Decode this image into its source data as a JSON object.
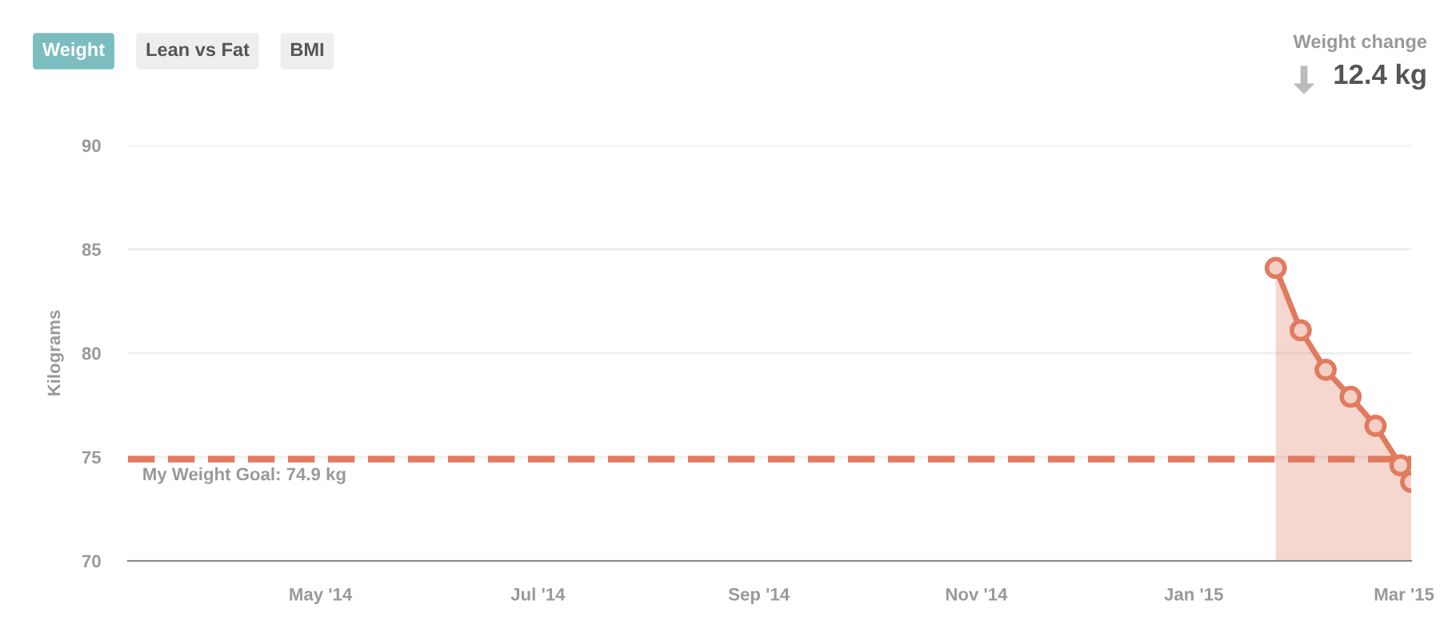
{
  "chart_data": {
    "type": "area",
    "ylabel": "Kilograms",
    "annotations": [
      "Weight",
      "Lean vs Fat",
      "BMI",
      "Weight change",
      "12.4 kg"
    ],
    "series": [
      {
        "color": "#e07b5f",
        "x": [
          "2015-01-24",
          "2015-01-31",
          "2015-02-07",
          "2015-02-14",
          "2015-02-21",
          "2015-02-28",
          "2015-03-03"
        ],
        "values": [
          84.1,
          81.1,
          79.2,
          77.9,
          76.5,
          74.6,
          73.8
        ]
      }
    ],
    "xlim": [
      "2014-03-08",
      "2015-03-03"
    ],
    "xticks": [
      {
        "value": "2014-05-01",
        "label": "May '14"
      },
      {
        "value": "2014-07-01",
        "label": "Jul '14"
      },
      {
        "value": "2014-09-01",
        "label": "Sep '14"
      },
      {
        "value": "2014-11-01",
        "label": "Nov '14"
      },
      {
        "value": "2015-01-01",
        "label": "Jan '15"
      },
      {
        "value": "2015-03-01",
        "label": "Mar '15"
      }
    ],
    "ylim": [
      70,
      90
    ],
    "yticks": [
      70,
      75,
      80,
      85,
      90
    ],
    "ref_lines": [
      {
        "axis": "y",
        "value": 74.9,
        "label": "My Weight Goal: 74.9 kg",
        "color": "#e07b5f",
        "line_style": "dashed"
      }
    ],
    "grid": "y",
    "marker": "circle",
    "legend": false
  }
}
